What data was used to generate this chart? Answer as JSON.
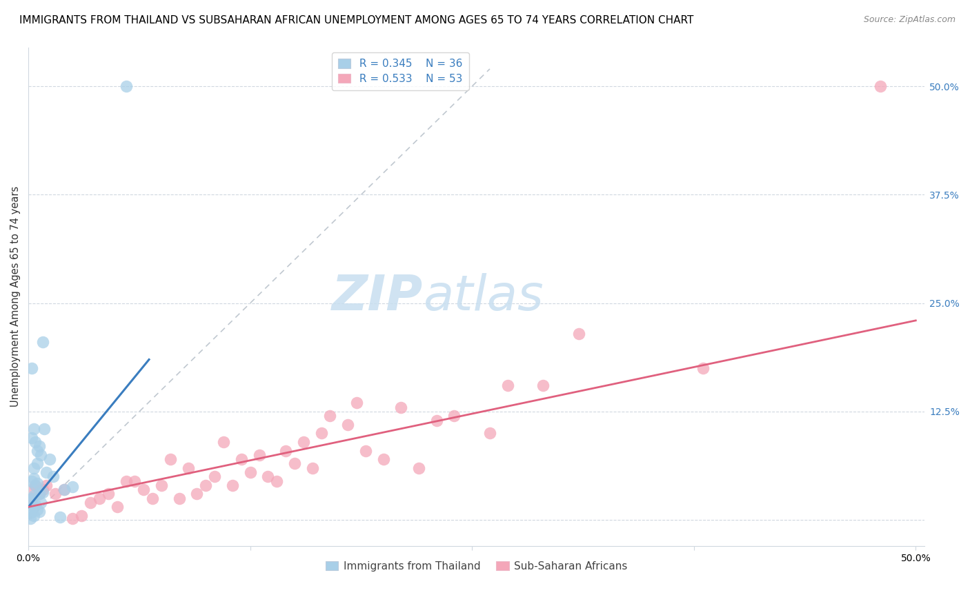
{
  "title": "IMMIGRANTS FROM THAILAND VS SUBSAHARAN AFRICAN UNEMPLOYMENT AMONG AGES 65 TO 74 YEARS CORRELATION CHART",
  "source": "Source: ZipAtlas.com",
  "ylabel": "Unemployment Among Ages 65 to 74 years",
  "xlabel_blue": "Immigrants from Thailand",
  "xlabel_pink": "Sub-Saharan Africans",
  "R_blue": 0.345,
  "N_blue": 36,
  "R_pink": 0.533,
  "N_pink": 53,
  "color_blue": "#a8cfe8",
  "color_pink": "#f4a7b9",
  "color_blue_line": "#3a7dbf",
  "color_pink_line": "#e0607e",
  "color_legend_blue": "#a8cfe8",
  "color_legend_pink": "#f4a7b9",
  "xlim": [
    0.0,
    0.505
  ],
  "ylim": [
    -0.03,
    0.545
  ],
  "xticks": [
    0.0,
    0.125,
    0.25,
    0.375,
    0.5
  ],
  "xticklabels": [
    "0.0%",
    "",
    "",
    "",
    "50.0%"
  ],
  "ytick_labels_right": [
    "",
    "12.5%",
    "25.0%",
    "37.5%",
    "50.0%"
  ],
  "ytick_positions_right": [
    0.0,
    0.125,
    0.25,
    0.375,
    0.5
  ],
  "background_color": "#ffffff",
  "watermark_zip": "ZIP",
  "watermark_atlas": "atlas",
  "blue_scatter_x": [
    0.055,
    0.008,
    0.009,
    0.003,
    0.002,
    0.004,
    0.006,
    0.005,
    0.007,
    0.012,
    0.005,
    0.003,
    0.01,
    0.014,
    0.003,
    0.002,
    0.005,
    0.004,
    0.025,
    0.02,
    0.008,
    0.006,
    0.003,
    0.002,
    0.001,
    0.004,
    0.003,
    0.005,
    0.002,
    0.001,
    0.003,
    0.018,
    0.007,
    0.006,
    0.001,
    0.002
  ],
  "blue_scatter_y": [
    0.5,
    0.205,
    0.105,
    0.105,
    0.095,
    0.09,
    0.085,
    0.08,
    0.075,
    0.07,
    0.065,
    0.06,
    0.055,
    0.05,
    0.048,
    0.045,
    0.042,
    0.04,
    0.038,
    0.035,
    0.032,
    0.03,
    0.028,
    0.025,
    0.022,
    0.018,
    0.015,
    0.012,
    0.01,
    0.008,
    0.005,
    0.003,
    0.02,
    0.01,
    0.002,
    0.175
  ],
  "pink_scatter_x": [
    0.48,
    0.38,
    0.31,
    0.29,
    0.27,
    0.26,
    0.24,
    0.23,
    0.22,
    0.21,
    0.2,
    0.19,
    0.185,
    0.18,
    0.17,
    0.165,
    0.16,
    0.155,
    0.15,
    0.145,
    0.14,
    0.135,
    0.13,
    0.125,
    0.12,
    0.115,
    0.11,
    0.105,
    0.1,
    0.095,
    0.09,
    0.085,
    0.08,
    0.075,
    0.07,
    0.065,
    0.06,
    0.055,
    0.05,
    0.045,
    0.04,
    0.035,
    0.03,
    0.025,
    0.02,
    0.015,
    0.01,
    0.008,
    0.006,
    0.004,
    0.003,
    0.002,
    0.001
  ],
  "pink_scatter_y": [
    0.5,
    0.175,
    0.215,
    0.155,
    0.155,
    0.1,
    0.12,
    0.115,
    0.06,
    0.13,
    0.07,
    0.08,
    0.135,
    0.11,
    0.12,
    0.1,
    0.06,
    0.09,
    0.065,
    0.08,
    0.045,
    0.05,
    0.075,
    0.055,
    0.07,
    0.04,
    0.09,
    0.05,
    0.04,
    0.03,
    0.06,
    0.025,
    0.07,
    0.04,
    0.025,
    0.035,
    0.045,
    0.045,
    0.015,
    0.03,
    0.025,
    0.02,
    0.005,
    0.002,
    0.035,
    0.03,
    0.04,
    0.035,
    0.03,
    0.04,
    0.035,
    0.025,
    0.02
  ],
  "blue_line_x": [
    0.0,
    0.068
  ],
  "blue_line_y": [
    0.015,
    0.185
  ],
  "pink_line_x": [
    0.0,
    0.5
  ],
  "pink_line_y": [
    0.015,
    0.23
  ],
  "diag_line_x": [
    0.0,
    0.26
  ],
  "diag_line_y": [
    0.0,
    0.52
  ],
  "title_fontsize": 11,
  "axis_label_fontsize": 10.5,
  "tick_fontsize": 10,
  "legend_fontsize": 11,
  "watermark_fontsize_zip": 52,
  "watermark_fontsize_atlas": 52
}
